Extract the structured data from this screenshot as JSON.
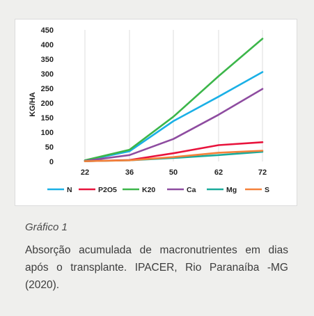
{
  "chart_data": {
    "type": "line",
    "title": "",
    "xlabel": "",
    "ylabel": "KG/HA",
    "x": [
      22,
      36,
      50,
      62,
      72
    ],
    "ylim": [
      0,
      450
    ],
    "yticks": [
      0,
      50,
      100,
      150,
      200,
      250,
      300,
      350,
      400,
      450
    ],
    "grid": "vertical",
    "legend_position": "bottom",
    "series": [
      {
        "name": "N",
        "color": "#1ab0e6",
        "values": [
          3,
          35,
          138,
          222,
          306
        ]
      },
      {
        "name": "P2O5",
        "color": "#e8133c",
        "values": [
          1,
          5,
          28,
          56,
          66
        ]
      },
      {
        "name": "K20",
        "color": "#3cb64a",
        "values": [
          4,
          40,
          153,
          292,
          420
        ]
      },
      {
        "name": "Ca",
        "color": "#8e4ca0",
        "values": [
          2,
          22,
          77,
          160,
          248
        ]
      },
      {
        "name": "Mg",
        "color": "#1aab9b",
        "values": [
          1,
          4,
          12,
          22,
          33
        ]
      },
      {
        "name": "S",
        "color": "#f5813a",
        "values": [
          1,
          4,
          15,
          30,
          37
        ]
      }
    ]
  },
  "caption": {
    "title": "Gráfico 1",
    "text": "Absorção acumulada de macronutrientes em dias após o transplante. IPACER, Rio Paranaíba -MG (2020)."
  }
}
